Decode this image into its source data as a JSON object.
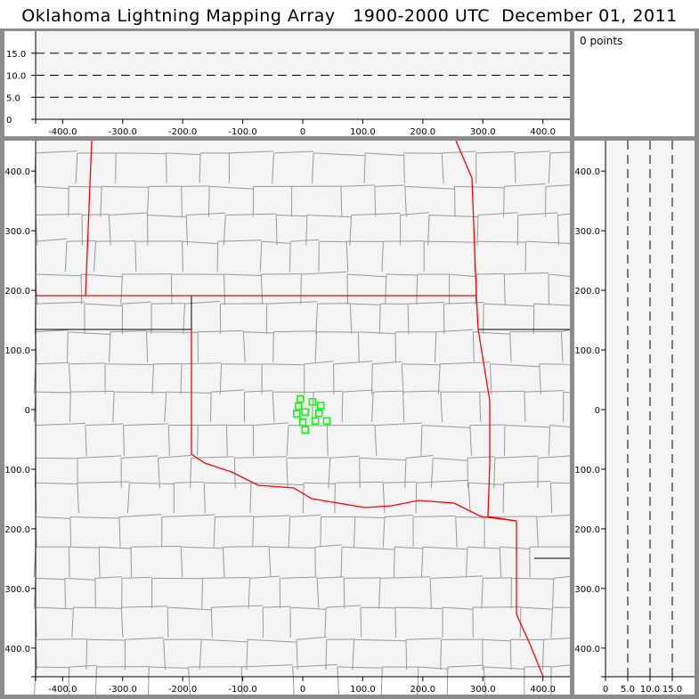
{
  "title": "Oklahoma Lightning Mapping Array   1900-2000 UTC  December 01, 2011",
  "info": {
    "point_count": "0 points"
  },
  "colors": {
    "background": "#f4f4f4",
    "state_border": "#ff0000",
    "county_border": "#999999",
    "source_marker": "#00ff00",
    "frame": "#8c8c8c"
  },
  "chart_data": [
    {
      "type": "line",
      "panel": "altitude-vs-east-west",
      "xlim": [
        -445,
        445
      ],
      "ylim": [
        0,
        20
      ],
      "xticks": [
        "-400.0",
        "-300.0",
        "-200.0",
        "-100.0",
        "0",
        "100.0",
        "200.0",
        "300.0",
        "400.0"
      ],
      "yticks": [
        "0",
        "5.0",
        "10.0",
        "15.0"
      ],
      "grid": "dashed horizontal at 5, 10, 15"
    },
    {
      "type": "scatter",
      "panel": "plan-view-map",
      "xlim": [
        -445,
        445
      ],
      "ylim": [
        -448,
        451
      ],
      "xticks": [
        "-400.0",
        "-300.0",
        "-200.0",
        "-100.0",
        "0",
        "100.0",
        "200.0",
        "300.0",
        "400.0"
      ],
      "yticks": [
        "-400.0",
        "-300.0",
        "-200.0",
        "-100.0",
        "0",
        "100.0",
        "200.0",
        "300.0",
        "400.0"
      ],
      "marker": "hollow square",
      "points": [
        {
          "x": -4,
          "y": 18
        },
        {
          "x": -7,
          "y": 6
        },
        {
          "x": 16,
          "y": 13
        },
        {
          "x": 30,
          "y": 7
        },
        {
          "x": -10,
          "y": -7
        },
        {
          "x": 4,
          "y": -4
        },
        {
          "x": 27,
          "y": -6
        },
        {
          "x": 0,
          "y": -21
        },
        {
          "x": 21,
          "y": -19
        },
        {
          "x": 40,
          "y": -19
        },
        {
          "x": 4,
          "y": -34
        }
      ]
    },
    {
      "type": "line",
      "panel": "north-south-vs-altitude",
      "xlim": [
        0,
        20
      ],
      "ylim": [
        -448,
        451
      ],
      "xticks": [
        "0",
        "5.0",
        "10.0",
        "15.0"
      ],
      "yticks": [
        "-400.0",
        "-300.0",
        "-200.0",
        "-100.0",
        "0",
        "100.0",
        "200.0",
        "300.0",
        "400.0"
      ],
      "grid": "dashed vertical at 5, 10, 15"
    }
  ]
}
